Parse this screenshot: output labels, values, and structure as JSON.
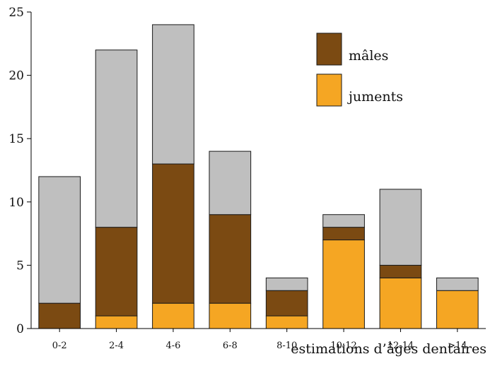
{
  "chart_data": {
    "type": "bar",
    "stacked": true,
    "title": "",
    "xlabel": "estimations d’âges dentaires",
    "ylabel": "",
    "ylim": [
      0,
      25
    ],
    "yticks": [
      0,
      5,
      10,
      15,
      20,
      25
    ],
    "grid": false,
    "legend_position": "top-right",
    "categories": [
      "0-2",
      "2-4",
      "4-6",
      "6-8",
      "8-10",
      "10-12",
      "12-14",
      ">14"
    ],
    "series": [
      {
        "name": "juments",
        "color": "#F5A623",
        "values": [
          0,
          1,
          2,
          2,
          1,
          7,
          4,
          3
        ]
      },
      {
        "name": "mâles",
        "color": "#7B4A12",
        "values": [
          2,
          7,
          11,
          7,
          2,
          1,
          1,
          0
        ]
      },
      {
        "name": "",
        "color": "#BFBFBF",
        "values": [
          10,
          14,
          11,
          5,
          1,
          1,
          6,
          1
        ]
      }
    ],
    "legend": [
      {
        "label": "mâles",
        "color": "#7B4A12"
      },
      {
        "label": "juments",
        "color": "#F5A623"
      }
    ]
  }
}
